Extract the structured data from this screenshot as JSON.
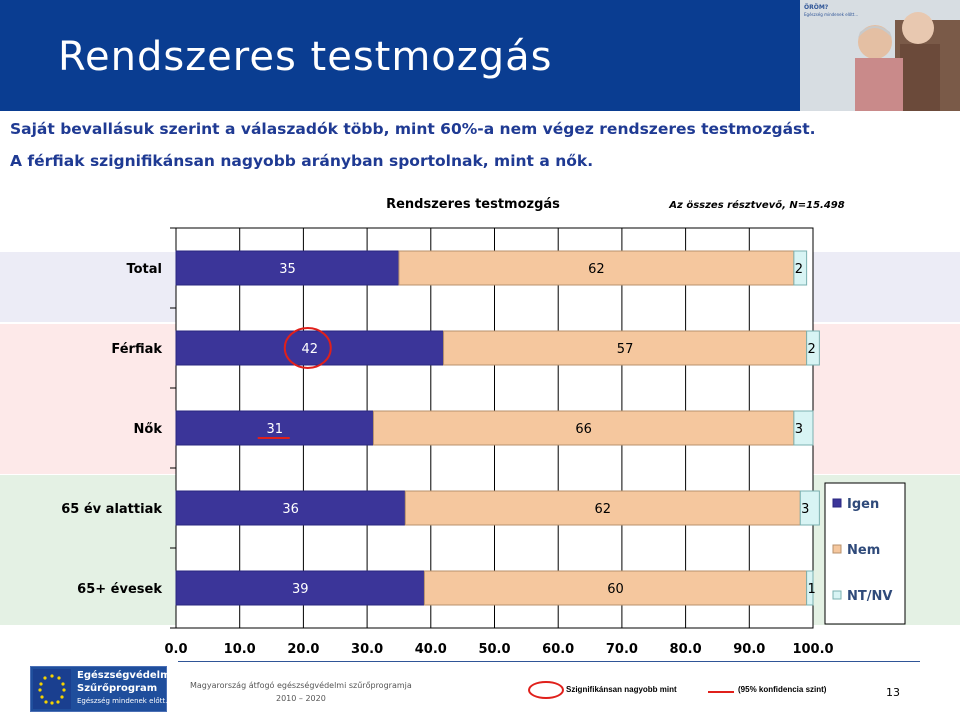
{
  "header": {
    "title": "Rendszeres testmozgás",
    "photo_caption": "ÖRÖM?",
    "photo_subcaption": "Egészség mindenek előtt..."
  },
  "subtitles": [
    "Saját bevallásuk szerint a válaszadók több, mint 60%-a nem végez rendszeres testmozgást.",
    "A férfiak szignifikánsan nagyobb arányban sportolnak, mint a nők."
  ],
  "chart_note": "Az összes résztvevő, N=15.498",
  "chart_data": {
    "type": "bar",
    "orientation": "horizontal",
    "stacked": true,
    "title": "Rendszeres testmozgás",
    "categories": [
      "Total",
      "Férfiak",
      "Nők",
      "65 év alattiak",
      "65+ évesek"
    ],
    "series": [
      {
        "name": "Igen",
        "values": [
          35,
          42,
          31,
          36,
          39
        ],
        "color": "#3b3599"
      },
      {
        "name": "Nem",
        "values": [
          62,
          57,
          66,
          62,
          60
        ],
        "color": "#f5c79e"
      },
      {
        "name": "NT/NV",
        "values": [
          2,
          2,
          3,
          3,
          1
        ],
        "color": "#d8f4f4"
      }
    ],
    "data_labels": [
      [
        "35",
        "62",
        "2"
      ],
      [
        "42",
        "57",
        "2"
      ],
      [
        "31",
        "66",
        "3"
      ],
      [
        "36",
        "62",
        "3"
      ],
      [
        "39",
        "60",
        "1"
      ]
    ],
    "x_ticks": [
      "0.0",
      "10.0",
      "20.0",
      "30.0",
      "40.0",
      "50.0",
      "60.0",
      "70.0",
      "80.0",
      "90.0",
      "100.0"
    ],
    "xlim": [
      0,
      100
    ],
    "grid": true,
    "legend_position": "right",
    "highlight_circle": {
      "category": "Férfiak",
      "series": "Igen"
    },
    "highlight_underline": {
      "category": "Nők",
      "series": "Igen"
    },
    "band_colors": [
      "#ececf6",
      "#fde9e9",
      "#e4f1e4"
    ]
  },
  "footer": {
    "logo_line1": "Egészségvédelmi",
    "logo_line2": "Szűrőprogram",
    "logo_line3": "Egészség mindenek előtt...",
    "program_line1": "Magyarország átfogó egészségvédelmi szűrőprogramja",
    "program_line2": "2010 – 2020",
    "sig_text_1": "Szignifikánsan nagyobb mint",
    "sig_text_2": "(95% konfidencia szint)",
    "page_number": "13"
  }
}
